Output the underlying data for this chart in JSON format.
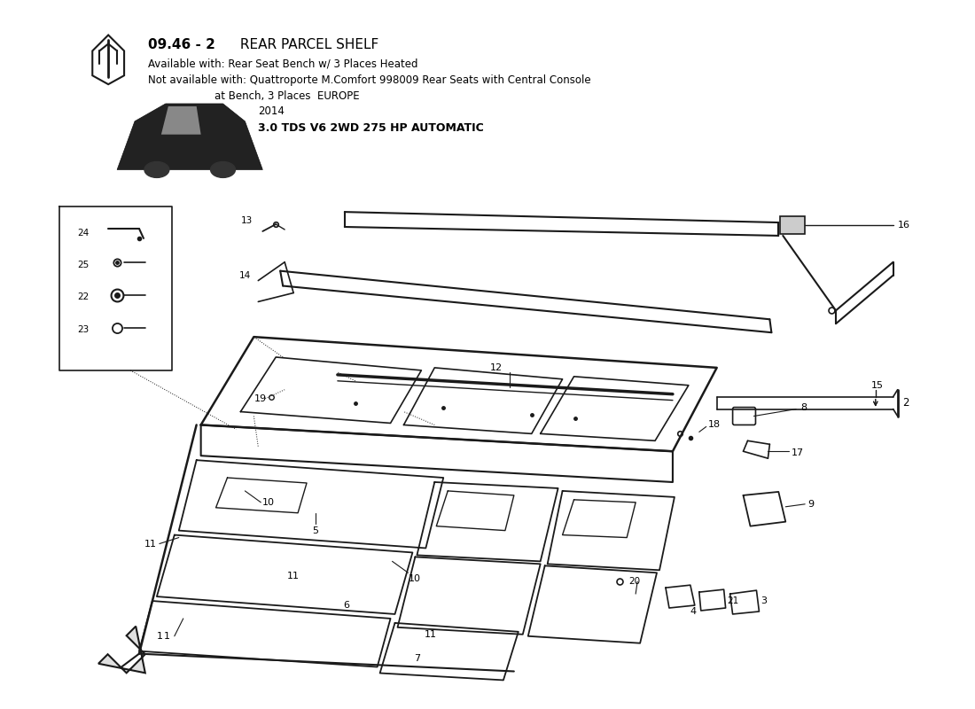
{
  "bg_color": "#ffffff",
  "lc": "#1a1a1a",
  "tc": "#000000",
  "title_bold": "09.46 - 2",
  "title_rest": " REAR PARCEL SHELF",
  "avail": "Available with: Rear Seat Bench w/ 3 Places Heated",
  "notavail": "Not available with: Quattroporte M.Comfort 998009 Rear Seats with Central Console",
  "notavail2": "                    at Bench, 3 Places",
  "europe": "EUROPE",
  "year": "2014",
  "spec": "3.0 TDS V6 2WD 275 HP AUTOMATIC"
}
